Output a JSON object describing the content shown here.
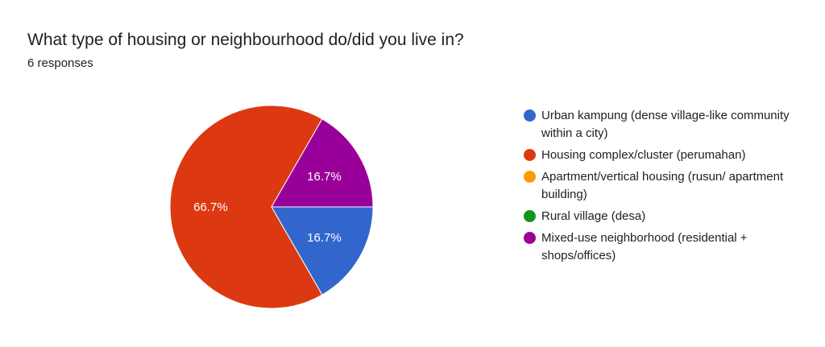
{
  "header": {
    "title": "What type of housing or neighbourhood do/did you live in?",
    "responses": "6 responses"
  },
  "chart_data": {
    "type": "pie",
    "title": "What type of housing or neighbourhood do/did you live in?",
    "legend_position": "right",
    "series": [
      {
        "name": "Urban kampung (dense village-like community within a city)",
        "value": 16.7,
        "color": "#3366cc",
        "label": "16.7%"
      },
      {
        "name": "Housing complex/cluster (perumahan)",
        "value": 66.7,
        "color": "#dc3912",
        "label": "66.7%"
      },
      {
        "name": "Apartment/vertical housing (rusun/ apartment building)",
        "value": 0,
        "color": "#ff9900",
        "label": ""
      },
      {
        "name": "Rural village (desa)",
        "value": 0,
        "color": "#109618",
        "label": ""
      },
      {
        "name": "Mixed-use neighborhood (residential + shops/offices)",
        "value": 16.7,
        "color": "#990099",
        "label": "16.7%"
      }
    ]
  }
}
